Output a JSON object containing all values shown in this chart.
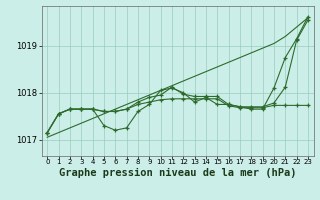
{
  "background_color": "#cceee8",
  "grid_color": "#99ccbb",
  "line_color": "#2d6b2d",
  "xlabel": "Graphe pression niveau de la mer (hPa)",
  "xlabel_fontsize": 7.5,
  "xlim": [
    -0.5,
    23.5
  ],
  "ylim": [
    1016.65,
    1019.85
  ],
  "yticks": [
    1017,
    1018,
    1019
  ],
  "xticks": [
    0,
    1,
    2,
    3,
    4,
    5,
    6,
    7,
    8,
    9,
    10,
    11,
    12,
    13,
    14,
    15,
    16,
    17,
    18,
    19,
    20,
    21,
    22,
    23
  ],
  "line_straight": [
    1017.05,
    1017.15,
    1017.25,
    1017.35,
    1017.45,
    1017.55,
    1017.65,
    1017.75,
    1017.85,
    1017.95,
    1018.05,
    1018.15,
    1018.25,
    1018.35,
    1018.45,
    1018.55,
    1018.65,
    1018.75,
    1018.85,
    1018.95,
    1019.05,
    1019.2,
    1019.4,
    1019.6
  ],
  "line_wavy1": [
    1017.15,
    1017.55,
    1017.65,
    1017.65,
    1017.65,
    1017.3,
    1017.2,
    1017.25,
    1017.6,
    1017.75,
    1018.05,
    1018.1,
    1018.0,
    1017.8,
    1017.9,
    1017.75,
    1017.75,
    1017.7,
    1017.65,
    1017.65,
    1018.1,
    1018.75,
    1019.15,
    1019.62
  ],
  "line_wavy2": [
    1017.15,
    1017.55,
    1017.65,
    1017.65,
    1017.65,
    1017.6,
    1017.6,
    1017.65,
    1017.8,
    1017.9,
    1017.95,
    1018.12,
    1017.97,
    1017.92,
    1017.92,
    1017.92,
    1017.75,
    1017.7,
    1017.7,
    1017.7,
    1017.78,
    1018.12,
    1019.12,
    1019.55
  ],
  "line_flat": [
    1017.15,
    1017.55,
    1017.65,
    1017.65,
    1017.65,
    1017.6,
    1017.6,
    1017.65,
    1017.75,
    1017.8,
    1017.85,
    1017.87,
    1017.87,
    1017.87,
    1017.87,
    1017.87,
    1017.72,
    1017.68,
    1017.68,
    1017.68,
    1017.73,
    1017.73,
    1017.73,
    1017.73
  ]
}
